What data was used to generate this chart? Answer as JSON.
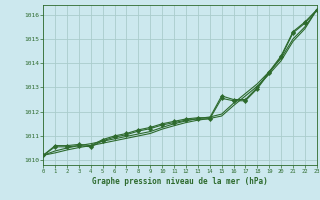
{
  "x": [
    0,
    1,
    2,
    3,
    4,
    5,
    6,
    7,
    8,
    9,
    10,
    11,
    12,
    13,
    14,
    15,
    16,
    17,
    18,
    19,
    20,
    21,
    22,
    23
  ],
  "line_marked1": [
    1010.2,
    1010.6,
    1010.6,
    1010.65,
    1010.6,
    1010.85,
    1011.0,
    1011.1,
    1011.25,
    1011.35,
    1011.5,
    1011.6,
    1011.7,
    1011.75,
    1011.75,
    1012.65,
    1012.5,
    1012.5,
    1013.0,
    1013.65,
    1014.3,
    1015.3,
    1015.7,
    1016.2
  ],
  "line_marked2": [
    1010.2,
    1010.55,
    1010.55,
    1010.6,
    1010.55,
    1010.8,
    1010.95,
    1011.05,
    1011.2,
    1011.3,
    1011.45,
    1011.55,
    1011.65,
    1011.7,
    1011.7,
    1012.55,
    1012.45,
    1012.45,
    1012.95,
    1013.6,
    1014.25,
    1015.25,
    1015.65,
    1016.2
  ],
  "line_smooth1": [
    1010.2,
    1010.38,
    1010.5,
    1010.6,
    1010.68,
    1010.78,
    1010.88,
    1010.98,
    1011.08,
    1011.18,
    1011.35,
    1011.5,
    1011.62,
    1011.72,
    1011.78,
    1011.9,
    1012.35,
    1012.75,
    1013.15,
    1013.65,
    1014.2,
    1015.0,
    1015.5,
    1016.2
  ],
  "line_smooth2": [
    1010.2,
    1010.3,
    1010.42,
    1010.52,
    1010.6,
    1010.7,
    1010.8,
    1010.9,
    1011.0,
    1011.1,
    1011.28,
    1011.42,
    1011.55,
    1011.65,
    1011.72,
    1011.82,
    1012.25,
    1012.65,
    1013.05,
    1013.55,
    1014.1,
    1014.9,
    1015.42,
    1016.2
  ],
  "yticks": [
    1010,
    1011,
    1012,
    1013,
    1014,
    1015,
    1016
  ],
  "xticks": [
    0,
    1,
    2,
    3,
    4,
    5,
    6,
    7,
    8,
    9,
    10,
    11,
    12,
    13,
    14,
    15,
    16,
    17,
    18,
    19,
    20,
    21,
    22,
    23
  ],
  "xlabel": "Graphe pression niveau de la mer (hPa)",
  "line_color": "#2d6a2d",
  "bg_color": "#cce8ee",
  "grid_color": "#aacccc",
  "xlim": [
    0,
    23
  ],
  "ylim": [
    1009.8,
    1016.4
  ]
}
